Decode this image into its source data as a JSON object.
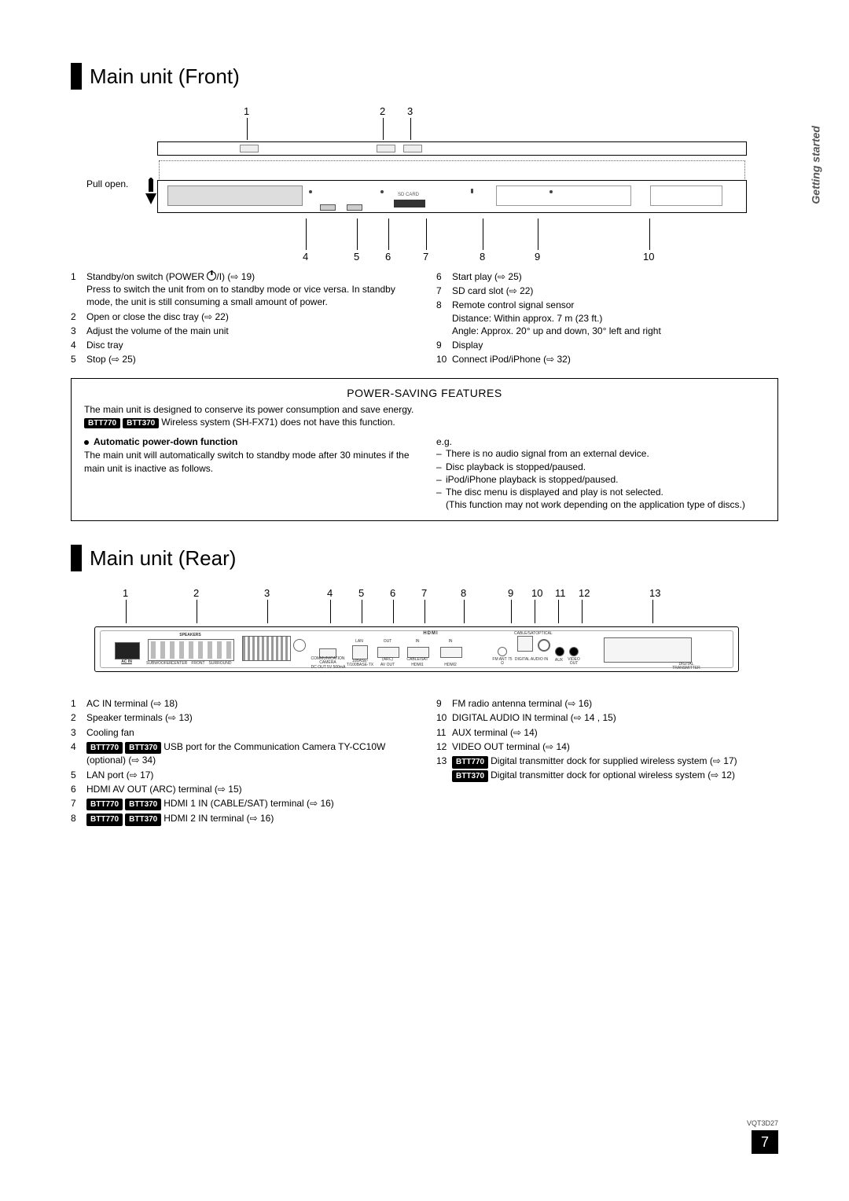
{
  "side_tab": "Getting started",
  "sections": {
    "front": {
      "title": "Main unit (Front)",
      "pull_open": "Pull open.",
      "top_numbers": [
        "1",
        "2",
        "3"
      ],
      "bottom_numbers": [
        "4",
        "5",
        "6",
        "7",
        "8",
        "9",
        "10"
      ],
      "legend_left": [
        {
          "n": "1",
          "text": "Standby/on switch (POWER ⏻/I) (⇨ 19)",
          "sub": "Press to switch the unit from on to standby mode or vice versa. In standby mode, the unit is still consuming a small amount of power."
        },
        {
          "n": "2",
          "text": "Open or close the disc tray (⇨ 22)"
        },
        {
          "n": "3",
          "text": "Adjust the volume of the main unit"
        },
        {
          "n": "4",
          "text": "Disc tray"
        },
        {
          "n": "5",
          "text": "Stop (⇨ 25)"
        }
      ],
      "legend_right": [
        {
          "n": "6",
          "text": "Start play (⇨ 25)"
        },
        {
          "n": "7",
          "text": "SD card slot (⇨ 22)"
        },
        {
          "n": "8",
          "text": "Remote control signal sensor",
          "sub": "Distance: Within approx. 7 m (23 ft.)\nAngle: Approx. 20° up and down, 30° left and right"
        },
        {
          "n": "9",
          "text": "Display"
        },
        {
          "n": "10",
          "text": "Connect iPod/iPhone (⇨ 32)"
        }
      ]
    },
    "power": {
      "title": "POWER-SAVING FEATURES",
      "intro": "The main unit is designed to conserve its power consumption and save energy.",
      "intro2_badges": [
        "BTT770",
        "BTT370"
      ],
      "intro2": "Wireless system (SH-FX71) does not have this function.",
      "left_heading": "Automatic power-down function",
      "left_body": "The main unit will automatically switch to standby mode after 30 minutes if the main unit is inactive as follows.",
      "right_eg": "e.g.",
      "right_items": [
        "There is no audio signal from an external device.",
        "Disc playback is stopped/paused.",
        "iPod/iPhone playback is stopped/paused.",
        "The disc menu is displayed and play is not selected.\n(This function may not work depending on the application type of discs.)"
      ]
    },
    "rear": {
      "title": "Main unit (Rear)",
      "numbers": [
        "1",
        "2",
        "3",
        "4",
        "5",
        "6",
        "7",
        "8",
        "9",
        "10",
        "11",
        "12",
        "13"
      ],
      "panel_labels": {
        "acin": "AC IN",
        "speakers": "SPEAKERS",
        "subwoofer": "SUBWOOFER",
        "center": "CENTER",
        "front": "FRONT",
        "surround": "SURROUND",
        "comm": "COMMUNICATION CAMERA",
        "dcout": "DC OUT  5V 500mA",
        "lan": "LAN",
        "baset": "10BASE-T/100BASE-TX",
        "arc": "(ARC)",
        "avout": "AV OUT",
        "hdmi1": "HDMI1",
        "in": "IN",
        "cablesat": "CABLE/SAT",
        "hdmi2": "HDMI2",
        "hdmi": "HDMI",
        "fmant": "FM ANT 75 Ω",
        "optical": "OPTICAL",
        "cablesat2": "CABLE/SAT",
        "digaudio": "DIGITAL AUDIO IN",
        "aux": "AUX",
        "video": "VIDEO OUT",
        "digtrans": "DIGITAL TRANSMITTER",
        "out": "OUT"
      },
      "legend_left": [
        {
          "n": "1",
          "text": "AC IN terminal (⇨ 18)"
        },
        {
          "n": "2",
          "text": "Speaker terminals (⇨ 13)"
        },
        {
          "n": "3",
          "text": "Cooling fan"
        },
        {
          "n": "4",
          "badges": [
            "BTT770",
            "BTT370"
          ],
          "text": "USB port for the Communication Camera TY-CC10W (optional) (⇨ 34)"
        },
        {
          "n": "5",
          "text": "LAN port (⇨ 17)"
        },
        {
          "n": "6",
          "text": "HDMI AV OUT (ARC) terminal (⇨ 15)"
        },
        {
          "n": "7",
          "badges": [
            "BTT770",
            "BTT370"
          ],
          "text": "HDMI 1 IN (CABLE/SAT) terminal (⇨ 16)"
        },
        {
          "n": "8",
          "badges": [
            "BTT770",
            "BTT370"
          ],
          "text": "HDMI 2 IN terminal (⇨ 16)"
        }
      ],
      "legend_right": [
        {
          "n": "9",
          "text": "FM radio antenna terminal (⇨ 16)"
        },
        {
          "n": "10",
          "text": "DIGITAL AUDIO IN terminal (⇨ 14 , 15)"
        },
        {
          "n": "11",
          "text": "AUX terminal (⇨ 14)"
        },
        {
          "n": "12",
          "text": "VIDEO OUT terminal (⇨ 14)"
        },
        {
          "n": "13",
          "badges": [
            "BTT770"
          ],
          "text": "Digital transmitter dock for supplied wireless system (⇨ 17)",
          "extra_badges": [
            "BTT370"
          ],
          "extra": "Digital transmitter dock for optional wireless system (⇨ 12)"
        }
      ]
    }
  },
  "footer": {
    "code": "VQT3D27",
    "page": "7"
  },
  "style": {
    "text_color": "#000000",
    "badge_bg": "#000000",
    "badge_fg": "#ffffff",
    "border": "#000000",
    "background": "#ffffff"
  }
}
